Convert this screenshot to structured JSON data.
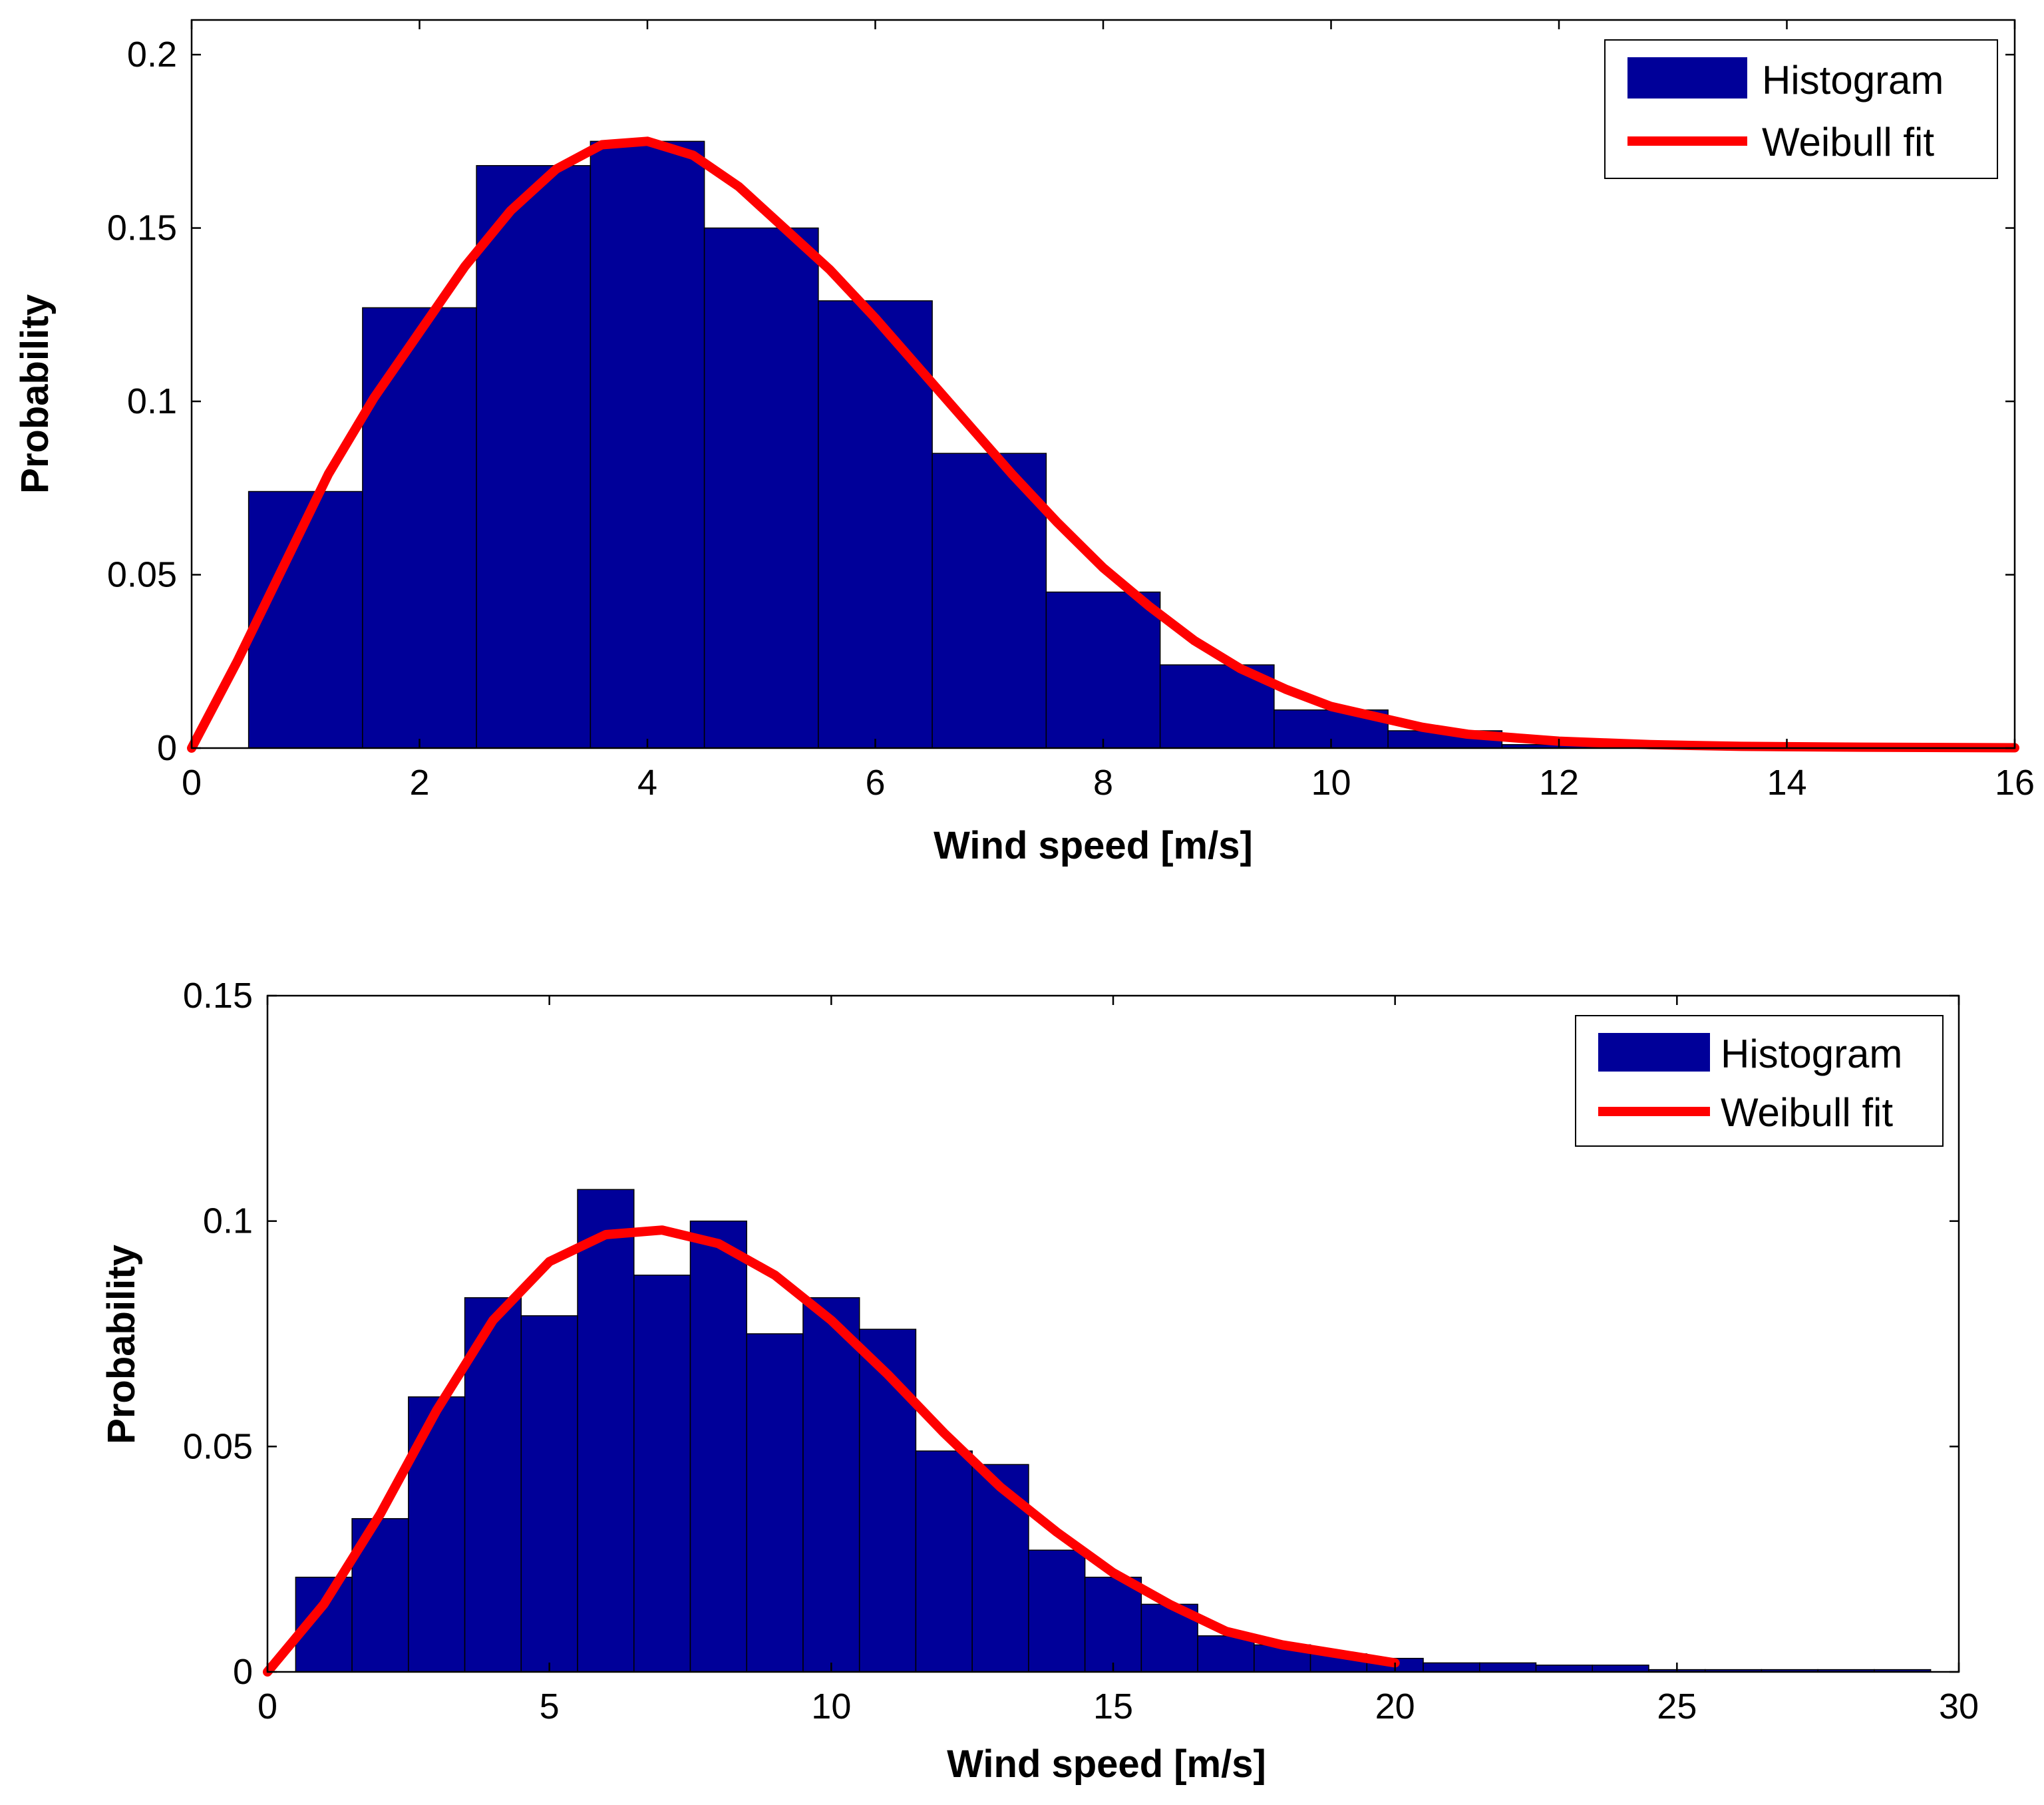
{
  "colors": {
    "bar_fill": "#000099",
    "bar_edge": "#000000",
    "fit_line": "#ff0000",
    "axes": "#000000",
    "background": "#ffffff"
  },
  "chart_data": [
    {
      "type": "bar",
      "title": "",
      "xlabel": "Wind speed [m/s]",
      "ylabel": "Probability",
      "xlim": [
        0,
        16
      ],
      "ylim": [
        0,
        0.21
      ],
      "xticks": [
        0,
        2,
        4,
        6,
        8,
        10,
        12,
        14,
        16
      ],
      "xtick_labels": [
        "0",
        "2",
        "4",
        "6",
        "8",
        "10",
        "12",
        "14",
        "16"
      ],
      "yticks": [
        0,
        0.05,
        0.1,
        0.15,
        0.2
      ],
      "ytick_labels": [
        "0",
        "0.05",
        "0.1",
        "0.15",
        "0.2"
      ],
      "grid": false,
      "legend": {
        "position": "top-right",
        "entries": [
          "Histogram",
          "Weibull fit"
        ]
      },
      "series": [
        {
          "name": "Histogram",
          "kind": "bar",
          "bin_width": 1,
          "x": [
            1,
            2,
            3,
            4,
            5,
            6,
            7,
            8,
            9,
            10,
            11,
            12,
            13,
            14,
            15
          ],
          "values": [
            0.074,
            0.127,
            0.168,
            0.175,
            0.15,
            0.129,
            0.085,
            0.045,
            0.024,
            0.011,
            0.005,
            0.001,
            0.0005,
            0.0003,
            0.0002
          ]
        },
        {
          "name": "Weibull fit",
          "kind": "line",
          "x": [
            0,
            0.4,
            0.8,
            1.2,
            1.6,
            2.0,
            2.4,
            2.8,
            3.2,
            3.6,
            4.0,
            4.4,
            4.8,
            5.2,
            5.6,
            6.0,
            6.4,
            6.8,
            7.2,
            7.6,
            8.0,
            8.4,
            8.8,
            9.2,
            9.6,
            10.0,
            10.4,
            10.8,
            11.2,
            11.6,
            12.0,
            12.4,
            12.8,
            13.6,
            14.4,
            15.2,
            16.0
          ],
          "values": [
            0.0,
            0.025,
            0.052,
            0.079,
            0.101,
            0.12,
            0.139,
            0.155,
            0.167,
            0.174,
            0.175,
            0.171,
            0.162,
            0.15,
            0.138,
            0.124,
            0.109,
            0.094,
            0.079,
            0.065,
            0.052,
            0.041,
            0.031,
            0.023,
            0.017,
            0.012,
            0.009,
            0.006,
            0.004,
            0.003,
            0.002,
            0.0015,
            0.001,
            0.0005,
            0.0003,
            0.0002,
            0.0001
          ]
        }
      ]
    },
    {
      "type": "bar",
      "title": "",
      "xlabel": "Wind speed [m/s]",
      "ylabel": "Probability",
      "xlim": [
        0,
        30
      ],
      "ylim": [
        0,
        0.15
      ],
      "xticks": [
        0,
        5,
        10,
        15,
        20,
        25,
        30
      ],
      "xtick_labels": [
        "0",
        "5",
        "10",
        "15",
        "20",
        "25",
        "30"
      ],
      "yticks": [
        0,
        0.05,
        0.1,
        0.15
      ],
      "ytick_labels": [
        "0",
        "0.05",
        "0.1",
        "0.15"
      ],
      "grid": false,
      "legend": {
        "position": "top-right",
        "entries": [
          "Histogram",
          "Weibull fit"
        ]
      },
      "series": [
        {
          "name": "Histogram",
          "kind": "bar",
          "bin_width": 1,
          "x": [
            1,
            2,
            3,
            4,
            5,
            6,
            7,
            8,
            9,
            10,
            11,
            12,
            13,
            14,
            15,
            16,
            17,
            18,
            19,
            20,
            21,
            22,
            23,
            24,
            25,
            26,
            27,
            28,
            29
          ],
          "values": [
            0.021,
            0.034,
            0.061,
            0.083,
            0.079,
            0.107,
            0.088,
            0.1,
            0.075,
            0.083,
            0.076,
            0.049,
            0.046,
            0.027,
            0.021,
            0.015,
            0.008,
            0.006,
            0.004,
            0.003,
            0.002,
            0.002,
            0.0015,
            0.0015,
            0.0005,
            0.0005,
            0.0005,
            0.0005,
            0.0005
          ]
        },
        {
          "name": "Weibull fit",
          "kind": "line",
          "x": [
            0,
            1,
            2,
            3,
            4,
            5,
            6,
            7,
            8,
            9,
            10,
            11,
            12,
            13,
            14,
            15,
            16,
            17,
            18,
            19,
            20
          ],
          "values": [
            0.0,
            0.015,
            0.035,
            0.058,
            0.078,
            0.091,
            0.097,
            0.098,
            0.095,
            0.088,
            0.078,
            0.066,
            0.053,
            0.041,
            0.031,
            0.022,
            0.015,
            0.009,
            0.006,
            0.004,
            0.002
          ]
        }
      ]
    }
  ]
}
